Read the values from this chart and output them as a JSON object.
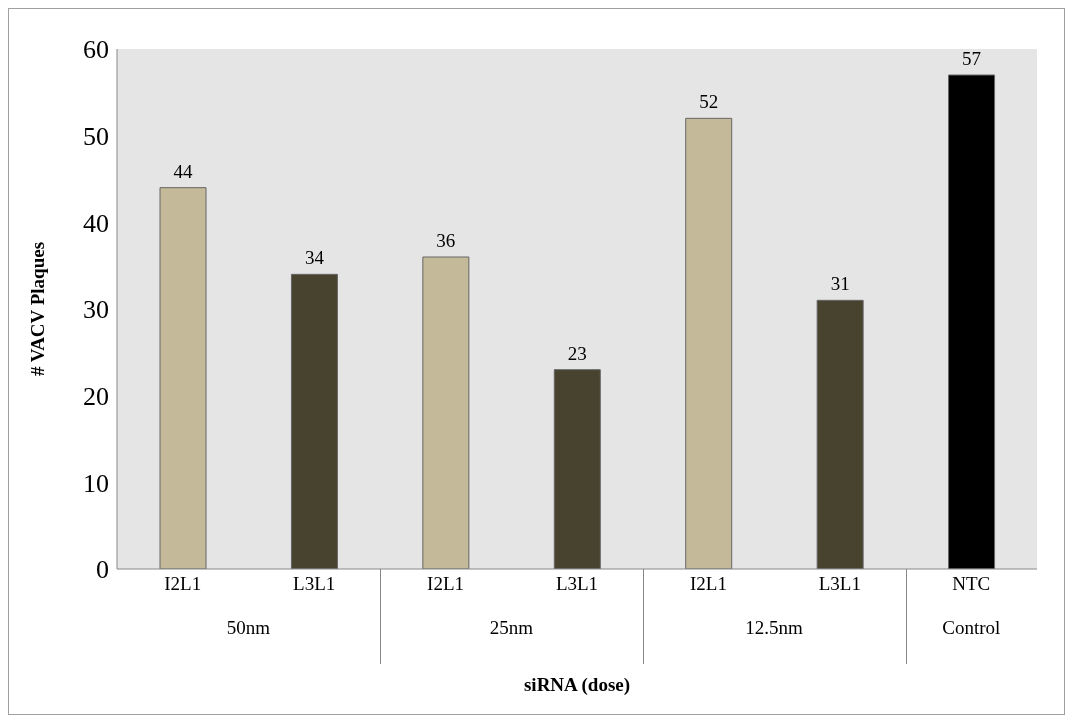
{
  "chart_data": {
    "type": "bar",
    "xlabel": "siRNA (dose)",
    "ylabel": "# VACV Plaques",
    "categories": [
      "I2L1",
      "L3L1",
      "I2L1",
      "L3L1",
      "I2L1",
      "L3L1",
      "NTC"
    ],
    "values": [
      44,
      34,
      36,
      23,
      52,
      31,
      57
    ],
    "colors": [
      "#c4b998",
      "#48432f",
      "#c4b998",
      "#48432f",
      "#c4b998",
      "#48432f",
      "#000000"
    ],
    "annotations": [
      "50nm",
      "25nm",
      "12.5nm",
      "Control"
    ],
    "ylim": [
      0,
      60
    ],
    "yticks": [
      0,
      10,
      20,
      30,
      40,
      50,
      60
    ],
    "data_labels": true
  }
}
